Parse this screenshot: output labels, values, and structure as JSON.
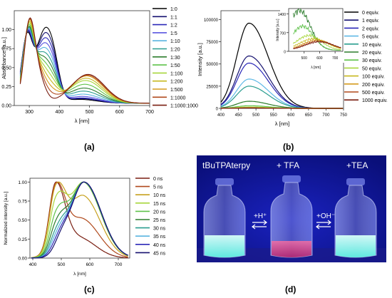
{
  "panel_labels": [
    "(a)",
    "(b)",
    "(c)",
    "(d)"
  ],
  "chart_data": [
    {
      "type": "line",
      "panel": "(a)",
      "title": "",
      "xlabel": "λ [nm]",
      "ylabel": "Absorbance [a.u.]",
      "xlim": [
        250,
        700
      ],
      "ylim": [
        0,
        1.25
      ],
      "xticks": [
        "300",
        "400",
        "500",
        "600",
        "700"
      ],
      "yticks": [
        "0.00",
        "0.25",
        "0.50",
        "0.75",
        "1.00"
      ],
      "legend": "right",
      "series": [
        {
          "name": "1:0",
          "color": "#000000",
          "peak": 1.0,
          "band": 0.05
        },
        {
          "name": "1:1",
          "color": "#161270",
          "peak": 1.01,
          "band": 0.06
        },
        {
          "name": "1:2",
          "color": "#2b28b8",
          "peak": 1.02,
          "band": 0.07
        },
        {
          "name": "1:5",
          "color": "#5a55e0",
          "peak": 1.03,
          "band": 0.09
        },
        {
          "name": "1:10",
          "color": "#59b4e0",
          "peak": 1.04,
          "band": 0.12
        },
        {
          "name": "1:20",
          "color": "#2a9d8f",
          "peak": 1.05,
          "band": 0.16
        },
        {
          "name": "1:30",
          "color": "#2d7d2d",
          "peak": 1.06,
          "band": 0.2
        },
        {
          "name": "1:50",
          "color": "#5fc24a",
          "peak": 1.08,
          "band": 0.25
        },
        {
          "name": "1:100",
          "color": "#a8d63c",
          "peak": 1.1,
          "band": 0.3
        },
        {
          "name": "1:200",
          "color": "#c7b81e",
          "peak": 1.12,
          "band": 0.33
        },
        {
          "name": "1:500",
          "color": "#d59b1e",
          "peak": 1.14,
          "band": 0.36
        },
        {
          "name": "1:1000",
          "color": "#b0491c",
          "peak": 1.15,
          "band": 0.37
        },
        {
          "name": "1:1000:1000",
          "color": "#7a1f12",
          "peak": 1.16,
          "band": 0.38
        }
      ]
    },
    {
      "type": "line",
      "panel": "(b)",
      "title": "",
      "xlabel": "λ [nm]",
      "ylabel": "Intensity [a.u.]",
      "xlim": [
        400,
        750
      ],
      "ylim": [
        0,
        110000
      ],
      "xticks": [
        "400",
        "450",
        "500",
        "550",
        "600",
        "650",
        "700",
        "750"
      ],
      "yticks": [
        "0",
        "25000",
        "50000",
        "75000",
        "100000"
      ],
      "legend": "right",
      "peak_x": 480,
      "series": [
        {
          "name": "0 equiv.",
          "color": "#000000",
          "peak": 96000
        },
        {
          "name": "1 equiv.",
          "color": "#161270",
          "peak": 59000
        },
        {
          "name": "2 equiv.",
          "color": "#2b28b8",
          "peak": 51000
        },
        {
          "name": "5 equiv.",
          "color": "#5fb9e6",
          "peak": 33000
        },
        {
          "name": "10 equiv.",
          "color": "#2a9d8f",
          "peak": 25000
        },
        {
          "name": "20 equiv.",
          "color": "#2d7d2d",
          "peak": 8000
        },
        {
          "name": "30 equiv.",
          "color": "#5fc24a",
          "peak": 3000
        },
        {
          "name": "50 equiv.",
          "color": "#a8d63c",
          "peak": 1500
        },
        {
          "name": "100 equiv.",
          "color": "#c7b81e",
          "peak": 800
        },
        {
          "name": "200 equiv.",
          "color": "#d59b1e",
          "peak": 600
        },
        {
          "name": "500 equiv.",
          "color": "#b0491c",
          "peak": 500
        },
        {
          "name": "1000 equiv.",
          "color": "#7a1f12",
          "peak": 400
        }
      ],
      "inset": {
        "xlabel": "λ [nm]",
        "ylabel": "Intensity [a.u.]",
        "xlim": [
          400,
          750
        ],
        "ylim": [
          0,
          1600
        ],
        "xticks": [
          "500",
          "600",
          "700"
        ],
        "yticks": [
          "0",
          "700",
          "1400"
        ],
        "series": [
          {
            "name": "20 equiv.",
            "color": "#2d7d2d",
            "peak": 1500,
            "peak_x": 470,
            "width": 70
          },
          {
            "name": "30 equiv.",
            "color": "#5fc24a",
            "peak": 900,
            "peak_x": 490,
            "width": 70
          },
          {
            "name": "50 equiv.",
            "color": "#a8d63c",
            "peak": 550,
            "peak_x": 530,
            "width": 80
          },
          {
            "name": "100 equiv.",
            "color": "#c7b81e",
            "peak": 430,
            "peak_x": 560,
            "width": 90
          },
          {
            "name": "200 equiv.",
            "color": "#d59b1e",
            "peak": 380,
            "peak_x": 580,
            "width": 90
          },
          {
            "name": "500 equiv.",
            "color": "#b0491c",
            "peak": 340,
            "peak_x": 590,
            "width": 90
          },
          {
            "name": "1000 equiv.",
            "color": "#7a1f12",
            "peak": 320,
            "peak_x": 600,
            "width": 90
          }
        ]
      }
    },
    {
      "type": "line",
      "panel": "(c)",
      "title": "",
      "xlabel": "λ [nm]",
      "ylabel": "Normalized intensity [a.u.]",
      "xlim": [
        390,
        740
      ],
      "ylim": [
        0,
        1.05
      ],
      "xticks": [
        "400",
        "500",
        "600",
        "700"
      ],
      "yticks": [
        "0.00",
        "0.25",
        "0.50",
        "0.75",
        "1.00"
      ],
      "legend": "right",
      "series": [
        {
          "name": "0 ns",
          "color": "#7a1f12",
          "mix": 0.0
        },
        {
          "name": "5 ns",
          "color": "#b0491c",
          "mix": 0.25
        },
        {
          "name": "10 ns",
          "color": "#c7a11e",
          "mix": 0.45
        },
        {
          "name": "15 ns",
          "color": "#a8d63c",
          "mix": 0.6
        },
        {
          "name": "20 ns",
          "color": "#5fc24a",
          "mix": 0.7
        },
        {
          "name": "25 ns",
          "color": "#2d7d2d",
          "mix": 0.78
        },
        {
          "name": "30 ns",
          "color": "#2a9d8f",
          "mix": 0.85
        },
        {
          "name": "35 ns",
          "color": "#59b4e0",
          "mix": 0.9
        },
        {
          "name": "40 ns",
          "color": "#2b28b8",
          "mix": 0.95
        },
        {
          "name": "45 ns",
          "color": "#161270",
          "mix": 1.0
        }
      ]
    }
  ],
  "photo": {
    "labels": [
      "tBuTPAterpy",
      "+ TFA",
      "+TEA"
    ],
    "arrow_left": "+H⁺",
    "arrow_right": "+OH⁻"
  }
}
